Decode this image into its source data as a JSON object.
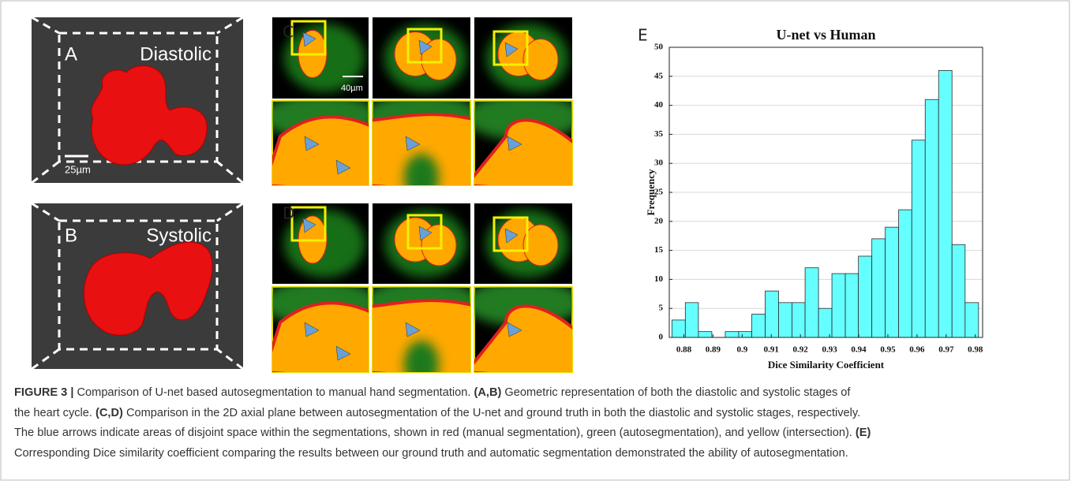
{
  "panels": {
    "a": {
      "letter": "A",
      "label": "Diastolic",
      "scale": "25µm"
    },
    "b": {
      "letter": "B",
      "label": "Systolic"
    },
    "c": {
      "letter": "C",
      "scale": "40µm"
    },
    "d": {
      "letter": "D"
    },
    "e": {
      "letter": "E"
    }
  },
  "chart_data": {
    "type": "histogram",
    "title": "U-net vs Human",
    "xlabel": "Dice Similarity Coefficient",
    "ylabel": "Frequency",
    "bins": [
      0.8759,
      0.8805,
      0.885,
      0.8896,
      0.8942,
      0.8988,
      0.9033,
      0.9079,
      0.9125,
      0.9171,
      0.9216,
      0.9262,
      0.9308,
      0.9354,
      0.9399,
      0.9445,
      0.9491,
      0.9537,
      0.9582,
      0.9628,
      0.9674,
      0.972,
      0.9765,
      0.9811
    ],
    "values": [
      3,
      6,
      1,
      0,
      1,
      1,
      4,
      8,
      6,
      6,
      12,
      5,
      11,
      11,
      14,
      17,
      19,
      22,
      34,
      41,
      46,
      16,
      6
    ],
    "color": "#66ffff",
    "edgecolor": "#2a2a2a",
    "xlim": [
      0.875,
      0.9825
    ],
    "xticks": [
      0.88,
      0.89,
      0.9,
      0.91,
      0.92,
      0.93,
      0.94,
      0.95,
      0.96,
      0.97,
      0.98
    ],
    "ylim": [
      0,
      50
    ],
    "yticks": [
      0,
      5,
      10,
      15,
      20,
      25,
      30,
      35,
      40,
      45,
      50
    ],
    "grid": true
  },
  "caption": [
    [
      {
        "text": "FIGURE 3 |",
        "bold": true
      },
      {
        "text": " Comparison of U-net based autosegmentation to manual hand segmentation. ",
        "bold": false
      },
      {
        "text": "(A,B)",
        "bold": true
      },
      {
        "text": " Geometric representation of both the diastolic and systolic stages of",
        "bold": false
      }
    ],
    [
      {
        "text": "the heart cycle. ",
        "bold": false
      },
      {
        "text": "(C,D)",
        "bold": true
      },
      {
        "text": " Comparison in the 2D axial plane between autosegmentation of the U-net and ground truth in both the diastolic and systolic stages, respectively.",
        "bold": false
      }
    ],
    [
      {
        "text": "The blue arrows indicate areas of disjoint space within the segmentations, shown in red (manual segmentation), green (autosegmentation), and yellow (intersection). ",
        "bold": false
      },
      {
        "text": "(E)",
        "bold": true
      }
    ],
    [
      {
        "text": "Corresponding Dice similarity coefficient comparing the results between our ground truth and automatic segmentation demonstrated the ability of autosegmentation.",
        "bold": false
      }
    ]
  ]
}
